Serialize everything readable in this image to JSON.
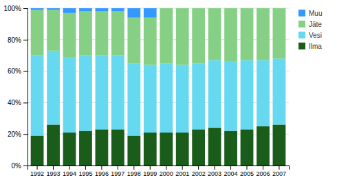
{
  "chart_data": {
    "type": "bar",
    "stacked": true,
    "categories": [
      "1992",
      "1993",
      "1994",
      "1995",
      "1996",
      "1997",
      "1998",
      "1999",
      "2000",
      "2001",
      "2002",
      "2003",
      "2004",
      "2005",
      "2006",
      "2007"
    ],
    "series": [
      {
        "name": "Ilma",
        "color": "#1a5c1a",
        "values": [
          19,
          26,
          21,
          22,
          23,
          23,
          19,
          21,
          21,
          21,
          23,
          24,
          22,
          23,
          25,
          26
        ]
      },
      {
        "name": "Vesi",
        "color": "#66d9f0",
        "values": [
          51,
          47,
          48,
          48,
          47,
          47,
          46,
          43,
          44,
          43,
          42,
          43,
          44,
          44,
          42,
          42
        ]
      },
      {
        "name": "Jäte",
        "color": "#85d085",
        "values": [
          29,
          26,
          28,
          28,
          28,
          28,
          29,
          30,
          35,
          36,
          35,
          33,
          34,
          33,
          33,
          32
        ]
      },
      {
        "name": "Muu",
        "color": "#3399ff",
        "values": [
          1,
          1,
          3,
          2,
          2,
          2,
          6,
          6,
          0,
          0,
          0,
          0,
          0,
          0,
          0,
          0
        ]
      }
    ],
    "ylim": [
      0,
      100
    ],
    "yticks": [
      {
        "value": 0,
        "label": "0%"
      },
      {
        "value": 20,
        "label": "20%"
      },
      {
        "value": 40,
        "label": "40%"
      },
      {
        "value": 60,
        "label": "60%"
      },
      {
        "value": 80,
        "label": "80%"
      },
      {
        "value": 100,
        "label": "100%"
      }
    ],
    "grid": true,
    "legend": "right"
  }
}
